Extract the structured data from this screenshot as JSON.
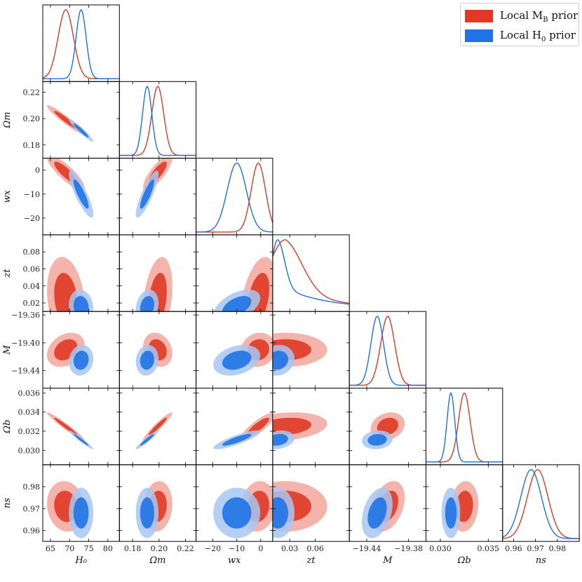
{
  "chart_data": {
    "type": "corner",
    "parameters": [
      {
        "id": "H0",
        "label": "H₀",
        "range": [
          63,
          83
        ],
        "ticks": [
          65,
          70,
          75,
          80
        ],
        "tick_labels": [
          "65",
          "70",
          "75",
          "80"
        ]
      },
      {
        "id": "Om",
        "label": "Ωm",
        "range": [
          0.17,
          0.228
        ],
        "ticks": [
          0.18,
          0.2,
          0.22
        ],
        "tick_labels": [
          "0.18",
          "0.20",
          "0.22"
        ]
      },
      {
        "id": "wx",
        "label": "wx",
        "range": [
          -27,
          5
        ],
        "ticks": [
          -20,
          -10,
          0
        ],
        "tick_labels": [
          "−20",
          "−10",
          "0"
        ]
      },
      {
        "id": "zt",
        "label": "zt",
        "range": [
          0.01,
          0.1
        ],
        "ticks": [
          0.02,
          0.04,
          0.06,
          0.08
        ],
        "tick_labels": [
          "0.02",
          "0.04",
          "0.06",
          "0.08"
        ],
        "x_tick_labels": [
          "0.03",
          "0.06"
        ],
        "x_ticks": [
          0.03,
          0.06
        ]
      },
      {
        "id": "M",
        "label": "M",
        "range": [
          -19.465,
          -19.355
        ],
        "ticks": [
          -19.44,
          -19.4,
          -19.36
        ],
        "tick_labels": [
          "−19.44",
          "−19.40",
          "−19.36"
        ],
        "x_ticks": [
          -19.44,
          -19.38
        ],
        "x_tick_labels": [
          "−19.44",
          "−19.38"
        ]
      },
      {
        "id": "Ob",
        "label": "Ωb",
        "range": [
          0.0285,
          0.0365
        ],
        "ticks": [
          0.03,
          0.032,
          0.034,
          0.036
        ],
        "tick_labels": [
          "0.030",
          "0.032",
          "0.034",
          "0.036"
        ],
        "x_ticks": [
          0.03,
          0.035
        ],
        "x_tick_labels": [
          "0.030",
          "0.035"
        ]
      },
      {
        "id": "ns",
        "label": "ns",
        "range": [
          0.955,
          0.99
        ],
        "ticks": [
          0.96,
          0.97,
          0.98
        ],
        "tick_labels": [
          "0.96",
          "0.97",
          "0.98"
        ]
      }
    ],
    "x_axis_titles": [
      "H₀",
      "Ωm",
      "wx",
      "zt",
      "M",
      "Ωb",
      "ns"
    ],
    "y_axis_titles": [
      "Ωm",
      "wx",
      "zt",
      "M",
      "Ωb",
      "ns"
    ],
    "series": [
      {
        "name": "Local M_B prior",
        "legend_label": "Local MB prior",
        "color": "#d93a2b",
        "fill_light": "#f2a79d",
        "fill_dark": "#e03a26",
        "means": [
          69.0,
          0.199,
          -1.0,
          0.025,
          -19.41,
          0.0325,
          0.971
        ],
        "sigmas": [
          2.0,
          0.0045,
          3.0,
          0.02,
          0.01,
          0.0006,
          0.0047
        ],
        "corr": {
          "H0-Om": -0.95,
          "H0-wx": -0.85,
          "Om-wx": 0.8,
          "H0-Ob": -0.97,
          "Om-Ob": 0.95,
          "wx-Ob": 0.85,
          "M-zt": 0.0,
          "H0-M": 0.3,
          "Om-M": -0.2,
          "wx-M": 0.1,
          "H0-ns": -0.1,
          "Om-ns": 0.1,
          "M-ns": 0.35,
          "Ob-ns": 0.1,
          "zt-ns": 0.0,
          "H0-zt": -0.2,
          "Om-zt": 0.3,
          "wx-zt": 0.4,
          "zt-Ob": 0.2,
          "M-Ob": 0.2,
          "wx-ns": 0.1
        }
      },
      {
        "name": "Local H_0 prior",
        "legend_label": "Local H0 prior",
        "color": "#1f6fe0",
        "fill_light": "#a8c7f2",
        "fill_dark": "#1f73e6",
        "means": [
          73.0,
          0.191,
          -10.0,
          0.016,
          -19.425,
          0.0311,
          0.968
        ],
        "sigmas": [
          1.3,
          0.0035,
          4.0,
          0.008,
          0.009,
          0.0004,
          0.0047
        ],
        "corr": {
          "H0-Om": -0.95,
          "H0-wx": -0.85,
          "Om-wx": 0.85,
          "H0-Ob": -0.97,
          "Om-Ob": 0.95,
          "wx-Ob": 0.85,
          "M-zt": 0.1,
          "H0-M": 0.1,
          "Om-M": 0.1,
          "wx-M": 0.3,
          "H0-ns": 0.0,
          "Om-ns": 0.0,
          "M-ns": 0.35,
          "Ob-ns": 0.0,
          "zt-ns": 0.0,
          "H0-zt": -0.1,
          "Om-zt": 0.2,
          "wx-zt": 0.5,
          "zt-Ob": 0.2,
          "M-Ob": 0.1,
          "wx-ns": 0.0
        }
      }
    ]
  },
  "legend": {
    "items": [
      {
        "label": "Local M",
        "sub": "B",
        "suffix": " prior",
        "color": "#e03a26"
      },
      {
        "label": "Local H",
        "sub": "0",
        "suffix": " prior",
        "color": "#1f73e6"
      }
    ]
  }
}
